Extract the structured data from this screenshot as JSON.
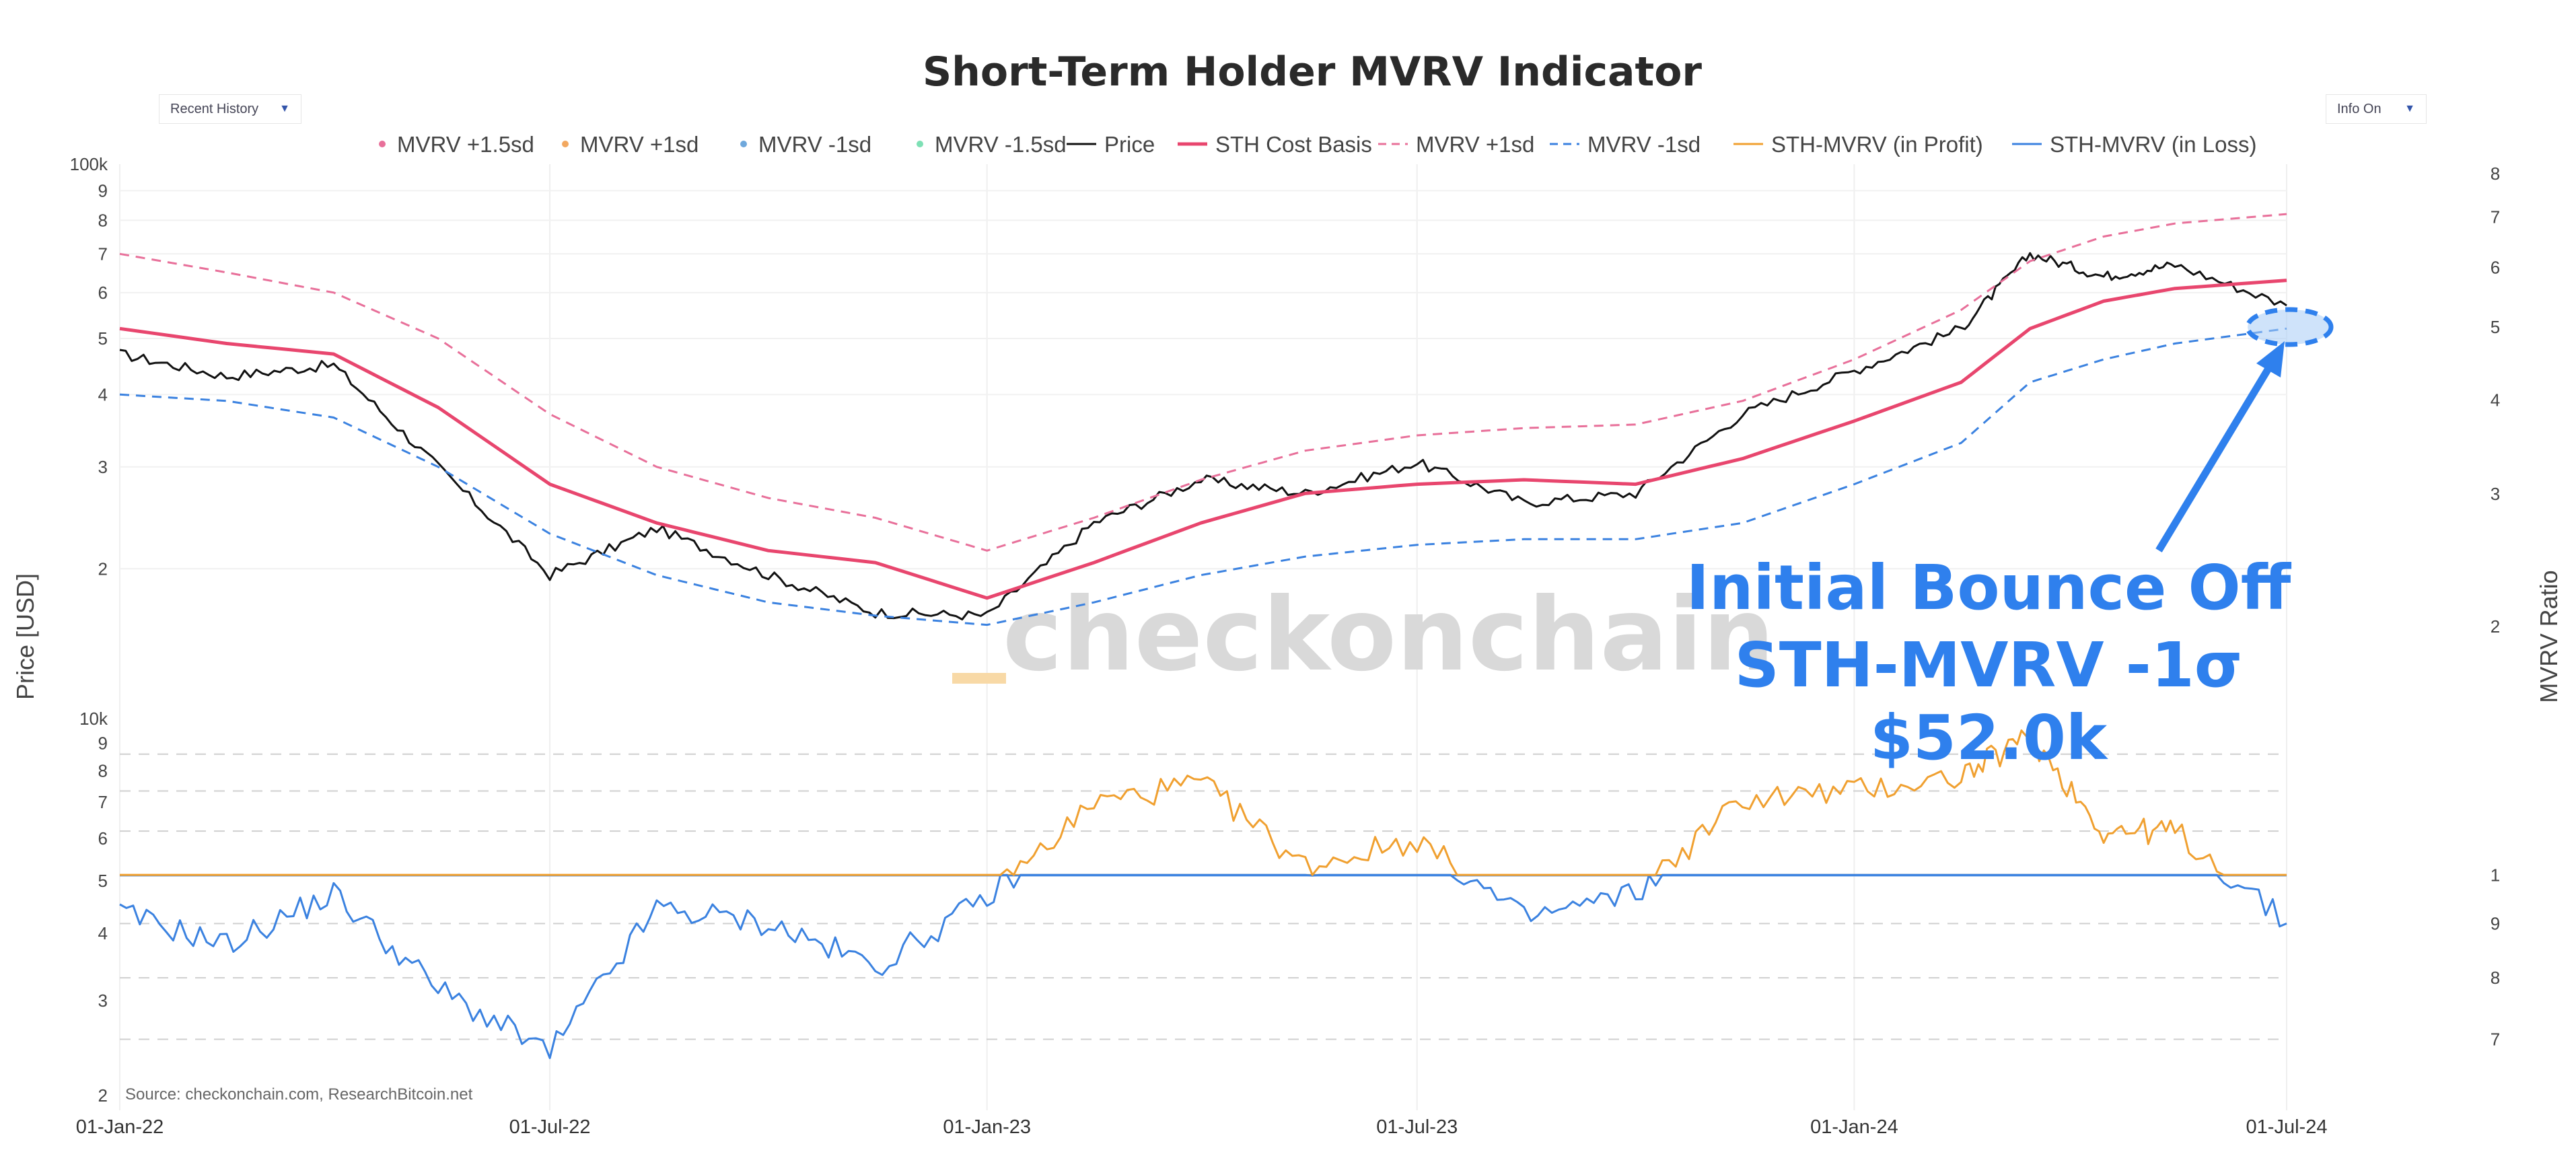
{
  "header": {
    "title": "Short-Term Holder MVRV Indicator",
    "left_dropdown": "Recent History",
    "right_dropdown": "Info On",
    "dropdown_arrow": "▼"
  },
  "legend": [
    {
      "label": "MVRV +1.5sd",
      "kind": "dot",
      "color": "#e8709a"
    },
    {
      "label": "MVRV +1sd",
      "kind": "dot",
      "color": "#f2a860"
    },
    {
      "label": "MVRV -1sd",
      "kind": "dot",
      "color": "#6fa8dc"
    },
    {
      "label": "MVRV -1.5sd",
      "kind": "dot",
      "color": "#7ee0b5"
    },
    {
      "label": "Price",
      "kind": "line",
      "color": "#111111"
    },
    {
      "label": "STH Cost Basis",
      "kind": "line",
      "color": "#e8466e"
    },
    {
      "label": "MVRV +1sd",
      "kind": "dash",
      "color": "#e8709a"
    },
    {
      "label": "MVRV -1sd",
      "kind": "dash",
      "color": "#3b82e0"
    },
    {
      "label": "STH-MVRV (in Profit)",
      "kind": "line",
      "color": "#f0a030"
    },
    {
      "label": "STH-MVRV (in Loss)",
      "kind": "line",
      "color": "#3b82e0"
    }
  ],
  "axes": {
    "left_title": "Price [USD]",
    "right_title": "MVRV Ratio",
    "x_ticks": [
      "01-Jan-22",
      "01-Jul-22",
      "01-Jan-23",
      "01-Jul-23",
      "01-Jan-24",
      "01-Jul-24"
    ],
    "top_left_ticks": [
      "100k",
      "9",
      "8",
      "7",
      "6",
      "5",
      "4",
      "3",
      "2"
    ],
    "bottom_left_ticks": [
      "10k",
      "9",
      "8",
      "7",
      "6",
      "5",
      "4",
      "3",
      "2"
    ],
    "top_right_ticks": [
      "8",
      "7",
      "6",
      "5",
      "4",
      "3",
      "2"
    ],
    "bottom_right_ticks": [
      "1",
      "9",
      "8",
      "7"
    ]
  },
  "annotation": {
    "line1": "Initial Bounce Off",
    "line2": "STH-MVRV -1σ",
    "line3": "$52.0k"
  },
  "watermark": "checkonchain",
  "source": "Source: checkonchain.com, ResearchBitcoin.net",
  "chart_data": [
    {
      "type": "line",
      "title": "Short-Term Holder MVRV Indicator",
      "ylabel": "Price [USD]",
      "y_scale": "log",
      "ylim": [
        17000,
        100000
      ],
      "x": [
        "2022-01-01",
        "2022-02-15",
        "2022-04-01",
        "2022-05-15",
        "2022-07-01",
        "2022-08-15",
        "2022-10-01",
        "2022-11-15",
        "2023-01-01",
        "2023-02-15",
        "2023-04-01",
        "2023-05-15",
        "2023-07-01",
        "2023-08-15",
        "2023-10-01",
        "2023-11-15",
        "2024-01-01",
        "2024-02-15",
        "2024-03-15",
        "2024-04-15",
        "2024-05-15",
        "2024-07-01"
      ],
      "series": [
        {
          "name": "Price",
          "values": [
            47000,
            43000,
            45000,
            30000,
            19500,
            23500,
            19500,
            16800,
            16600,
            24000,
            28500,
            27000,
            30500,
            26000,
            27000,
            37000,
            44000,
            52000,
            70000,
            64000,
            67000,
            57000
          ]
        },
        {
          "name": "STH Cost Basis",
          "values": [
            52000,
            49000,
            47000,
            38000,
            28000,
            24000,
            21500,
            20500,
            17800,
            20500,
            24000,
            27000,
            28000,
            28500,
            28000,
            31000,
            36000,
            42000,
            52000,
            58000,
            61000,
            63000
          ]
        },
        {
          "name": "MVRV +1sd",
          "values": [
            70000,
            65000,
            60000,
            50000,
            37000,
            30000,
            26500,
            24500,
            21500,
            24500,
            28500,
            32000,
            34000,
            35000,
            35500,
            39000,
            46000,
            56000,
            68000,
            75000,
            79000,
            82000
          ]
        },
        {
          "name": "MVRV -1sd",
          "values": [
            40000,
            39000,
            36500,
            30000,
            23000,
            19500,
            17500,
            16600,
            16000,
            17500,
            19500,
            21000,
            22000,
            22500,
            22500,
            24000,
            28000,
            33000,
            42000,
            46000,
            49000,
            52000
          ]
        }
      ],
      "y2_label": "MVRV Ratio",
      "y2_ticks": [
        2,
        3,
        4,
        5,
        6,
        7,
        8
      ]
    },
    {
      "type": "line",
      "title": "STH-MVRV",
      "y_scale": "log",
      "ylim": [
        0.6,
        1.4
      ],
      "baseline": 1.0,
      "x": [
        "2022-01-01",
        "2022-02-15",
        "2022-04-01",
        "2022-05-15",
        "2022-07-01",
        "2022-08-15",
        "2022-10-01",
        "2022-11-15",
        "2023-01-01",
        "2023-02-15",
        "2023-04-01",
        "2023-05-15",
        "2023-07-01",
        "2023-08-15",
        "2023-10-01",
        "2023-11-15",
        "2024-01-01",
        "2024-02-15",
        "2024-03-15",
        "2024-04-15",
        "2024-05-15",
        "2024-07-01"
      ],
      "series": [
        {
          "name": "STH-MVRV",
          "values": [
            0.92,
            0.86,
            0.96,
            0.78,
            0.68,
            0.93,
            0.9,
            0.82,
            0.95,
            1.17,
            1.22,
            1.02,
            1.08,
            0.91,
            0.96,
            1.18,
            1.2,
            1.24,
            1.35,
            1.1,
            1.1,
            0.9
          ]
        }
      ],
      "y2_ticks": [
        0.7,
        0.8,
        0.9,
        1
      ]
    }
  ]
}
